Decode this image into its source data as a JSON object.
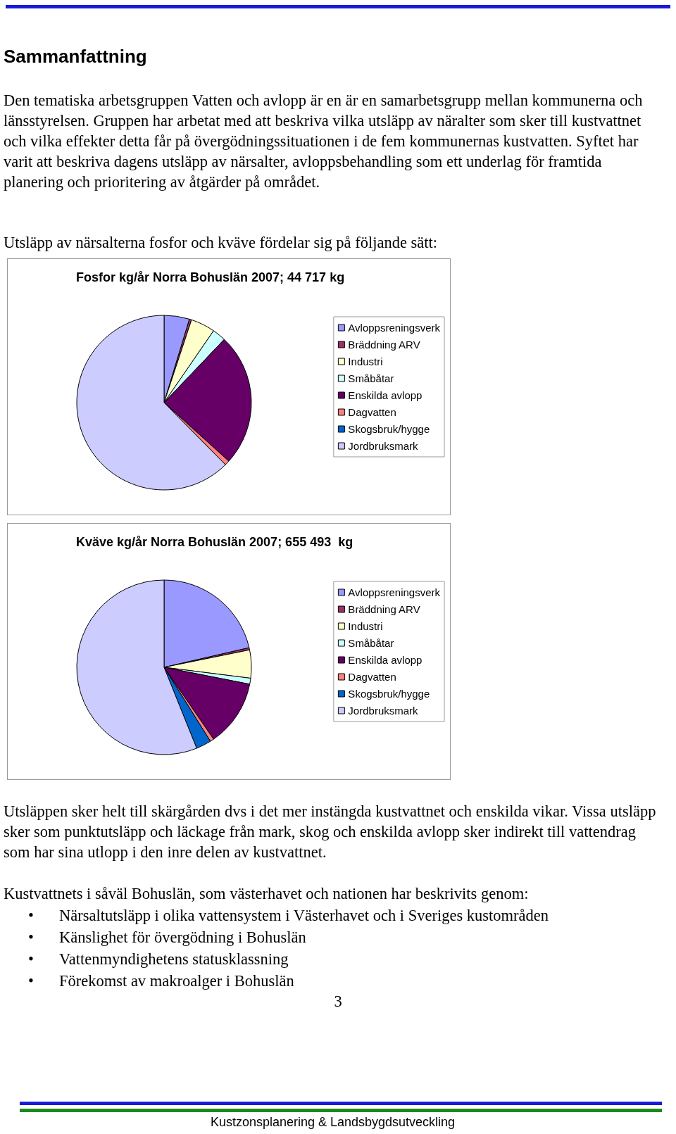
{
  "chart_data": [
    {
      "type": "pie",
      "title": "Fosfor kg/år Norra Bohuslän 2007; 44 717 kg",
      "categories": [
        "Avloppsreningsverk",
        "Bräddning ARV",
        "Industri",
        "Småbåtar",
        "Enskilda avlopp",
        "Dagvatten",
        "Skogsbruk/hygge",
        "Jordbruksmark"
      ],
      "values": [
        4.7,
        0.4,
        4.5,
        2.5,
        24.6,
        0.9,
        null,
        62.4
      ],
      "colors": [
        "#9999ff",
        "#993366",
        "#ffffcc",
        "#ccffff",
        "#660066",
        "#ff8080",
        "#0066cc",
        "#ccccff"
      ],
      "legend": "right",
      "annotations": [
        "Sammanfattning",
        "Den tematiska arbetsgruppen Vatten och avlopp är en är en samarbetsgrupp mellan kommunerna och länsstyrelsen. Gruppen har arbetat med att beskriva vilka utsläpp av näralter som sker till kustvattnet och vilka effekter detta får på övergödningssituationen i de fem kommunernas kustvatten. Syftet har varit att beskriva dagens utsläpp av närsalter, avloppsbehandling som ett underlag för framtida planering och prioritering av åtgärder på området.",
        "Utsläpp av närsalterna fosfor och kväve fördelar sig på följande sätt:"
      ]
    },
    {
      "type": "pie",
      "title": "Kväve kg/år Norra Bohuslän 2007; 655 493  kg",
      "categories": [
        "Avloppsreningsverk",
        "Bräddning ARV",
        "Industri",
        "Småbåtar",
        "Enskilda avlopp",
        "Dagvatten",
        "Skogsbruk/hygge",
        "Jordbruksmark"
      ],
      "values": [
        21.4,
        0.4,
        5.2,
        1.1,
        12.3,
        0.7,
        2.8,
        56.1
      ],
      "colors": [
        "#9999ff",
        "#993366",
        "#ffffcc",
        "#ccffff",
        "#660066",
        "#ff8080",
        "#0066cc",
        "#ccccff"
      ],
      "legend": "right",
      "annotations": [
        "Utsläppen sker helt till skärgården dvs i det mer instängda kustvattnet och enskilda vikar. Vissa utsläpp sker som punktutsläpp och läckage från mark, skog och enskilda avlopp sker indirekt till vattendrag som har sina utlopp i den inre delen av kustvattnet.",
        "Kustvattnets i såväl Bohuslän, som västerhavet och nationen har beskrivits genom:",
        "•\tNärsaltutsläpp i olika vattensystem i Västerhavet och i Sveriges kustområden",
        "•\tKänslighet för övergödning i Bohuslän",
        "•\tVattenmyndighetens statusklassning",
        "•\tFörekomst av makroalger i Bohuslän",
        "3",
        "Kustzonsplanering & Landsbygdsutveckling"
      ]
    }
  ]
}
